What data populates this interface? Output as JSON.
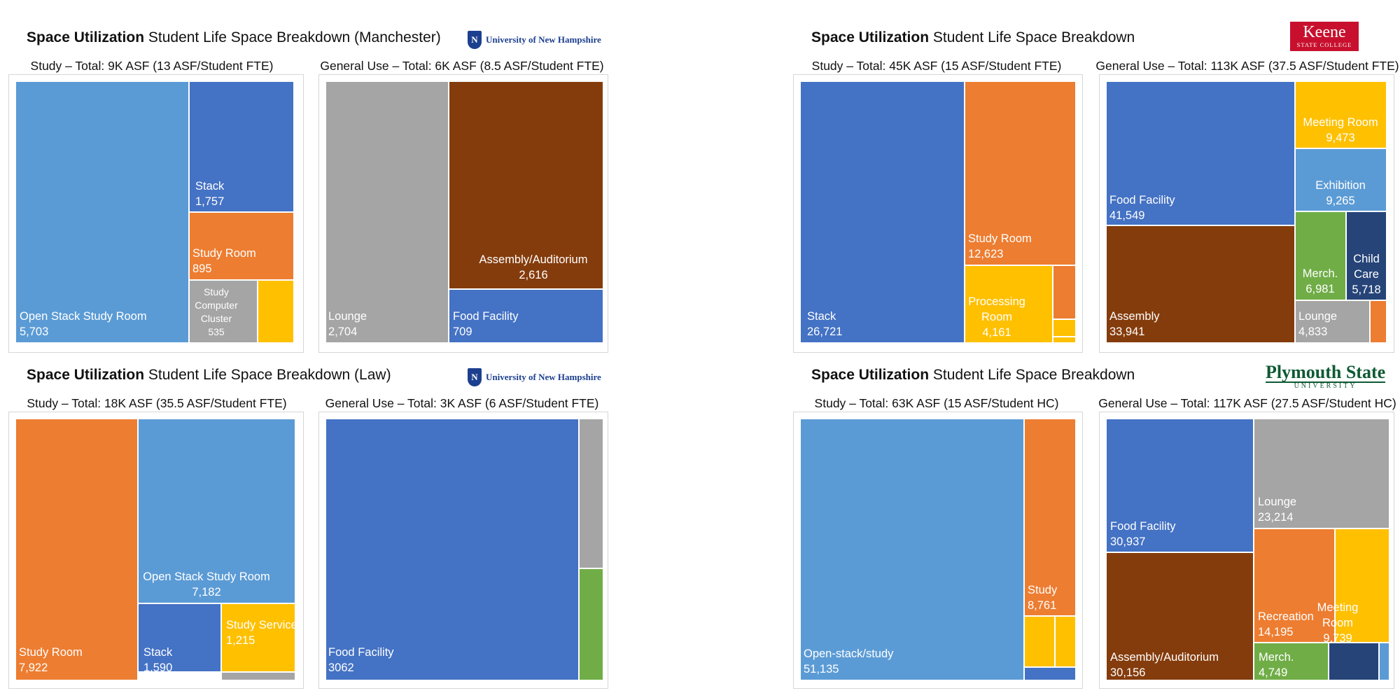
{
  "colors": {
    "lightblue": "#5b9bd5",
    "blue": "#4472c4",
    "orange": "#ed7d31",
    "gray": "#a5a5a5",
    "gold": "#ffc000",
    "brown": "#843c0c",
    "green": "#70ad47",
    "navy": "#264478"
  },
  "panels": [
    {
      "title_bold": "Space Utilization",
      "title_rest": " Student Life Space Breakdown (Manchester)",
      "logo": {
        "type": "unh",
        "mark": "N",
        "text": "University of New Hampshire"
      }
    },
    {
      "title_bold": "Space Utilization",
      "title_rest": " Student Life Space Breakdown",
      "logo": {
        "type": "keene",
        "line1": "Keene",
        "line2": "STATE COLLEGE"
      }
    },
    {
      "title_bold": "Space Utilization",
      "title_rest": " Student Life Space Breakdown (Law)",
      "logo": {
        "type": "unh",
        "mark": "N",
        "text": "University of New Hampshire"
      }
    },
    {
      "title_bold": "Space Utilization",
      "title_rest": " Student Life Space Breakdown",
      "logo": {
        "type": "psu",
        "line1": "Plymouth State",
        "line2": "UNIVERSITY"
      }
    }
  ],
  "chart_data": [
    {
      "type": "treemap",
      "title": "Study – Total: 9K ASF (13 ASF/Student FTE)",
      "cells": [
        {
          "label": "Open Stack Study Room",
          "value": "5,703",
          "color": "lightblue"
        },
        {
          "label": "Stack",
          "value": "1,757",
          "color": "blue"
        },
        {
          "label": "Study Room",
          "value": "895",
          "color": "orange"
        },
        {
          "label": "Study Computer Cluster",
          "value": "535",
          "color": "gray"
        },
        {
          "label": "",
          "value": "",
          "color": "gold"
        }
      ]
    },
    {
      "type": "treemap",
      "title": "General Use – Total: 6K ASF (8.5 ASF/Student FTE)",
      "cells": [
        {
          "label": "Lounge",
          "value": "2,704",
          "color": "gray"
        },
        {
          "label": "Assembly/Auditorium",
          "value": "2,616",
          "color": "brown"
        },
        {
          "label": "Food Facility",
          "value": "709",
          "color": "blue"
        }
      ]
    },
    {
      "type": "treemap",
      "title": "Study – Total: 45K ASF (15 ASF/Student FTE)",
      "cells": [
        {
          "label": "Stack",
          "value": "26,721",
          "color": "blue"
        },
        {
          "label": "Study Room",
          "value": "12,623",
          "color": "orange"
        },
        {
          "label": "Processing Room",
          "value": "4,161",
          "color": "gold"
        },
        {
          "label": "",
          "value": "",
          "color": "orange"
        },
        {
          "label": "",
          "value": "",
          "color": "gold"
        },
        {
          "label": "",
          "value": "",
          "color": "gold"
        }
      ]
    },
    {
      "type": "treemap",
      "title": "General Use – Total: 113K ASF (37.5 ASF/Student FTE)",
      "cells": [
        {
          "label": "Food Facility",
          "value": "41,549",
          "color": "blue"
        },
        {
          "label": "Assembly",
          "value": "33,941",
          "color": "brown"
        },
        {
          "label": "Meeting Room",
          "value": "9,473",
          "color": "gold"
        },
        {
          "label": "Exhibition",
          "value": "9,265",
          "color": "lightblue"
        },
        {
          "label": "Merch.",
          "value": "6,981",
          "color": "green"
        },
        {
          "label": "Child Care",
          "value": "5,718",
          "color": "navy"
        },
        {
          "label": "Lounge",
          "value": "4,833",
          "color": "gray"
        },
        {
          "label": "",
          "value": "",
          "color": "orange"
        }
      ]
    },
    {
      "type": "treemap",
      "title": "Study – Total: 18K ASF (35.5 ASF/Student FTE)",
      "cells": [
        {
          "label": "Study Room",
          "value": "7,922",
          "color": "orange"
        },
        {
          "label": "Open Stack Study Room",
          "value": "7,182",
          "color": "lightblue"
        },
        {
          "label": "Stack",
          "value": "1,590",
          "color": "blue"
        },
        {
          "label": "Study Service",
          "value": "1,215",
          "color": "gold"
        },
        {
          "label": "",
          "value": "",
          "color": "gray"
        }
      ]
    },
    {
      "type": "treemap",
      "title": "General Use – Total: 3K ASF (6 ASF/Student FTE)",
      "cells": [
        {
          "label": "Food Facility",
          "value": "3062",
          "color": "blue"
        },
        {
          "label": "",
          "value": "",
          "color": "gray"
        },
        {
          "label": "",
          "value": "",
          "color": "green"
        }
      ]
    },
    {
      "type": "treemap",
      "title": "Study – Total: 63K ASF (15 ASF/Student HC)",
      "cells": [
        {
          "label": "Open-stack/study",
          "value": "51,135",
          "color": "lightblue"
        },
        {
          "label": "Study",
          "value": "8,761",
          "color": "orange"
        },
        {
          "label": "",
          "value": "",
          "color": "gold"
        },
        {
          "label": "",
          "value": "",
          "color": "gold"
        },
        {
          "label": "",
          "value": "",
          "color": "blue"
        }
      ]
    },
    {
      "type": "treemap",
      "title": "General Use – Total: 117K ASF (27.5 ASF/Student HC)",
      "cells": [
        {
          "label": "Food Facility",
          "value": "30,937",
          "color": "blue"
        },
        {
          "label": "Assembly/Auditorium",
          "value": "30,156",
          "color": "brown"
        },
        {
          "label": "Lounge",
          "value": "23,214",
          "color": "gray"
        },
        {
          "label": "Recreation",
          "value": "14,195",
          "color": "orange"
        },
        {
          "label": "Meeting Room",
          "value": "9,739",
          "color": "gold"
        },
        {
          "label": "Merch.",
          "value": "4,749",
          "color": "green"
        },
        {
          "label": "",
          "value": "",
          "color": "navy"
        },
        {
          "label": "",
          "value": "",
          "color": "lightblue"
        }
      ]
    }
  ]
}
